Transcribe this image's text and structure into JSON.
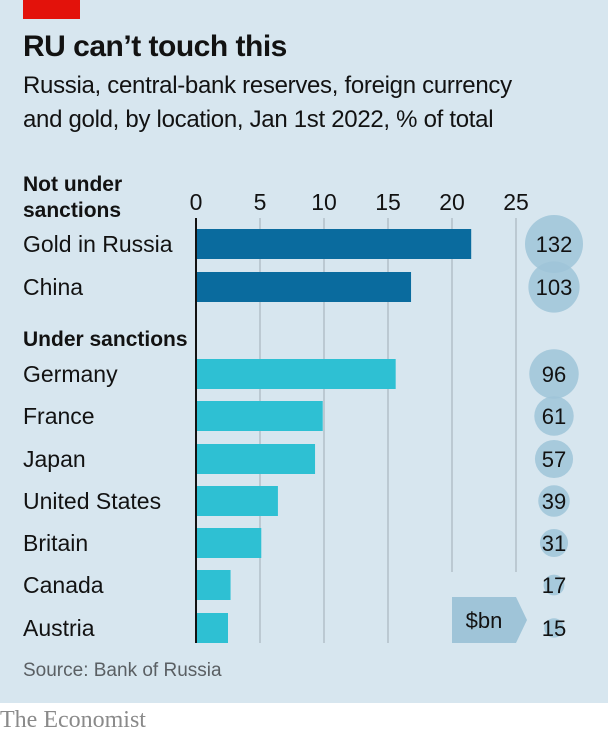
{
  "header": {
    "title": "RU can’t touch this",
    "subtitle_line1": "Russia, central-bank reserves, foreign currency",
    "subtitle_line2": "and gold, by location, Jan 1st 2022, % of total"
  },
  "footer": {
    "source": "Source: Bank of Russia",
    "brand": "The Economist"
  },
  "colors": {
    "not_sanctioned": "#0a6b9e",
    "sanctioned": "#2ec0d3",
    "bubble": "#9fc4d8",
    "brand_red": "#e3120b"
  },
  "chart_data": {
    "type": "bar",
    "orientation": "horizontal",
    "title": "RU can’t touch this",
    "subtitle": "Russia, central-bank reserves, foreign currency and gold, by location, Jan 1st 2022, % of total",
    "xlim": [
      0,
      25
    ],
    "ticks": [
      0,
      5,
      10,
      15,
      20,
      25
    ],
    "tick_labels": [
      "0",
      "5",
      "10",
      "15",
      "20",
      "25"
    ],
    "grid": true,
    "bubble_unit_label": "$bn",
    "groups": [
      {
        "label_line1": "Not under",
        "label_line2": "sanctions",
        "categories": [
          "Gold in Russia",
          "China"
        ],
        "values": [
          21.5,
          16.8
        ],
        "usd_bn": [
          132,
          103
        ]
      },
      {
        "label": "Under sanctions",
        "categories": [
          "Germany",
          "France",
          "Japan",
          "United States",
          "Britain",
          "Canada",
          "Austria"
        ],
        "values": [
          15.6,
          9.9,
          9.3,
          6.4,
          5.1,
          2.7,
          2.5
        ],
        "usd_bn": [
          96,
          61,
          57,
          39,
          31,
          17,
          15
        ]
      }
    ]
  }
}
